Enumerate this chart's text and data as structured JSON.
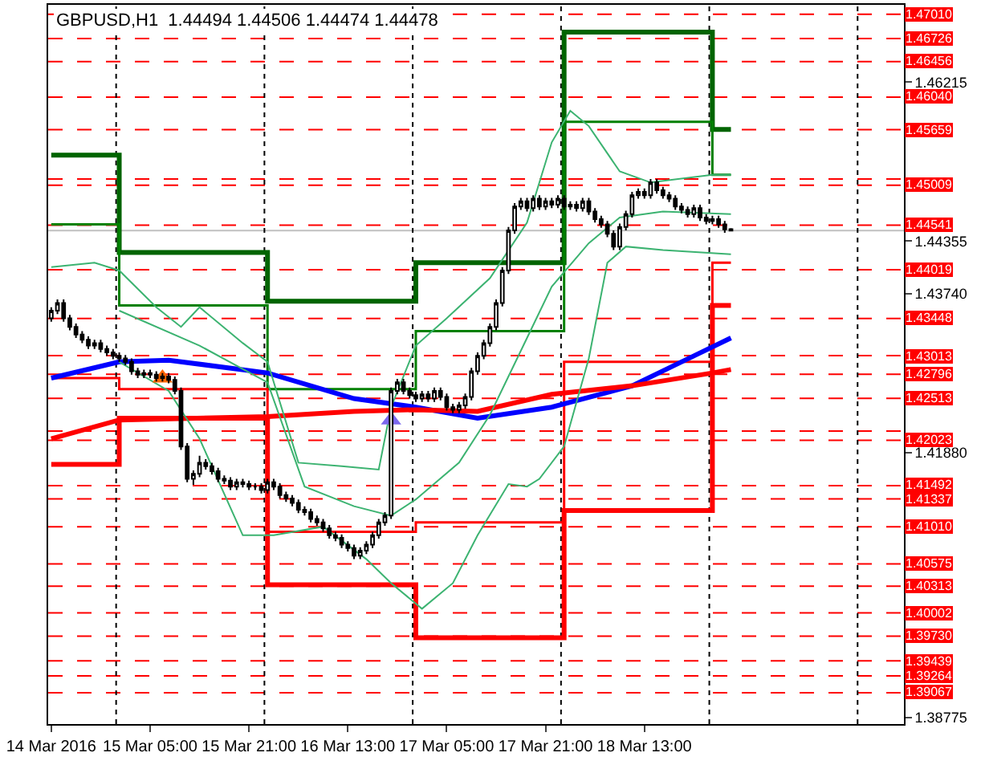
{
  "chart_data": {
    "type": "candlestick",
    "title": "GBPUSD,H1  1.44494 1.44506 1.44474 1.44478",
    "x": [
      "2016-03-14T13:00",
      "2016-03-14T14:00",
      "2016-03-14T15:00",
      "2016-03-14T16:00",
      "2016-03-14T17:00",
      "2016-03-14T18:00",
      "2016-03-14T19:00",
      "2016-03-14T20:00",
      "2016-03-14T21:00",
      "2016-03-14T22:00",
      "2016-03-14T23:00",
      "2016-03-15T00:00",
      "2016-03-15T01:00",
      "2016-03-15T02:00",
      "2016-03-15T03:00",
      "2016-03-15T04:00",
      "2016-03-15T05:00",
      "2016-03-15T06:00",
      "2016-03-15T07:00",
      "2016-03-15T08:00",
      "2016-03-15T09:00",
      "2016-03-15T10:00",
      "2016-03-15T11:00",
      "2016-03-15T12:00",
      "2016-03-15T13:00",
      "2016-03-15T14:00",
      "2016-03-15T15:00",
      "2016-03-15T16:00",
      "2016-03-15T17:00",
      "2016-03-15T18:00",
      "2016-03-15T19:00",
      "2016-03-15T20:00",
      "2016-03-15T21:00",
      "2016-03-15T22:00",
      "2016-03-15T23:00",
      "2016-03-16T00:00",
      "2016-03-16T01:00",
      "2016-03-16T02:00",
      "2016-03-16T03:00",
      "2016-03-16T04:00",
      "2016-03-16T05:00",
      "2016-03-16T06:00",
      "2016-03-16T07:00",
      "2016-03-16T08:00",
      "2016-03-16T09:00",
      "2016-03-16T10:00",
      "2016-03-16T11:00",
      "2016-03-16T12:00",
      "2016-03-16T13:00",
      "2016-03-16T14:00",
      "2016-03-16T15:00",
      "2016-03-16T16:00",
      "2016-03-16T17:00",
      "2016-03-16T18:00",
      "2016-03-16T19:00",
      "2016-03-16T20:00",
      "2016-03-16T21:00",
      "2016-03-16T22:00",
      "2016-03-16T23:00",
      "2016-03-17T00:00",
      "2016-03-17T01:00",
      "2016-03-17T02:00",
      "2016-03-17T03:00",
      "2016-03-17T04:00",
      "2016-03-17T05:00",
      "2016-03-17T06:00",
      "2016-03-17T07:00",
      "2016-03-17T08:00",
      "2016-03-17T09:00",
      "2016-03-17T10:00",
      "2016-03-17T11:00",
      "2016-03-17T12:00",
      "2016-03-17T13:00",
      "2016-03-17T14:00",
      "2016-03-17T15:00",
      "2016-03-17T16:00",
      "2016-03-17T17:00",
      "2016-03-17T18:00",
      "2016-03-17T19:00",
      "2016-03-17T20:00",
      "2016-03-17T21:00",
      "2016-03-17T22:00",
      "2016-03-17T23:00",
      "2016-03-18T00:00",
      "2016-03-18T01:00",
      "2016-03-18T02:00",
      "2016-03-18T03:00",
      "2016-03-18T04:00",
      "2016-03-18T05:00",
      "2016-03-18T06:00",
      "2016-03-18T07:00",
      "2016-03-18T08:00",
      "2016-03-18T09:00",
      "2016-03-18T10:00",
      "2016-03-18T11:00",
      "2016-03-18T12:00",
      "2016-03-18T13:00",
      "2016-03-18T14:00",
      "2016-03-18T15:00",
      "2016-03-18T16:00",
      "2016-03-18T17:00",
      "2016-03-18T18:00",
      "2016-03-18T19:00",
      "2016-03-18T20:00",
      "2016-03-18T21:00",
      "2016-03-18T22:00",
      "2016-03-18T23:00",
      "2016-03-19T00:00",
      "2016-03-19T01:00",
      "2016-03-19T02:00",
      "2016-03-19T03:00"
    ],
    "ohlc": [
      [
        1.4345,
        1.4358,
        1.4341,
        1.4354
      ],
      [
        1.4354,
        1.4367,
        1.435,
        1.4363
      ],
      [
        1.4363,
        1.4367,
        1.4341,
        1.4345
      ],
      [
        1.4345,
        1.4349,
        1.4331,
        1.4335
      ],
      [
        1.4335,
        1.4339,
        1.4322,
        1.4326
      ],
      [
        1.4326,
        1.433,
        1.4316,
        1.432
      ],
      [
        1.432,
        1.4324,
        1.4309,
        1.4313
      ],
      [
        1.4313,
        1.432,
        1.4309,
        1.4316
      ],
      [
        1.4316,
        1.432,
        1.4305,
        1.4309
      ],
      [
        1.4309,
        1.4313,
        1.4301,
        1.4305
      ],
      [
        1.4305,
        1.4309,
        1.4297,
        1.4301
      ],
      [
        1.4301,
        1.4305,
        1.4294,
        1.4298
      ],
      [
        1.4298,
        1.4302,
        1.429,
        1.4294
      ],
      [
        1.4294,
        1.4298,
        1.4279,
        1.4283
      ],
      [
        1.4283,
        1.4287,
        1.4275,
        1.4279
      ],
      [
        1.4279,
        1.4285,
        1.4275,
        1.4281
      ],
      [
        1.4281,
        1.4285,
        1.4275,
        1.4279
      ],
      [
        1.4279,
        1.4283,
        1.4271,
        1.4275
      ],
      [
        1.4275,
        1.4281,
        1.4271,
        1.4277
      ],
      [
        1.4277,
        1.4281,
        1.4269,
        1.4273
      ],
      [
        1.4273,
        1.4277,
        1.4256,
        1.426
      ],
      [
        1.426,
        1.4264,
        1.4191,
        1.4195
      ],
      [
        1.4195,
        1.4199,
        1.4153,
        1.4157
      ],
      [
        1.4157,
        1.4167,
        1.415,
        1.4163
      ],
      [
        1.4163,
        1.4184,
        1.4159,
        1.4176
      ],
      [
        1.4176,
        1.418,
        1.4168,
        1.4172
      ],
      [
        1.4172,
        1.4176,
        1.4162,
        1.4166
      ],
      [
        1.4166,
        1.417,
        1.4153,
        1.4157
      ],
      [
        1.4157,
        1.4161,
        1.4151,
        1.4155
      ],
      [
        1.4155,
        1.4159,
        1.4144,
        1.4148
      ],
      [
        1.4148,
        1.4157,
        1.4144,
        1.4153
      ],
      [
        1.4153,
        1.4157,
        1.4147,
        1.4151
      ],
      [
        1.4151,
        1.4155,
        1.4144,
        1.4148
      ],
      [
        1.4148,
        1.4152,
        1.4144,
        1.4148
      ],
      [
        1.4148,
        1.4152,
        1.414,
        1.4144
      ],
      [
        1.4144,
        1.4157,
        1.414,
        1.4153
      ],
      [
        1.4153,
        1.4157,
        1.4144,
        1.4148
      ],
      [
        1.4148,
        1.4152,
        1.4134,
        1.4138
      ],
      [
        1.4138,
        1.4142,
        1.413,
        1.4134
      ],
      [
        1.4134,
        1.4138,
        1.4125,
        1.4129
      ],
      [
        1.4129,
        1.4133,
        1.4117,
        1.4121
      ],
      [
        1.4121,
        1.4125,
        1.4114,
        1.4118
      ],
      [
        1.4118,
        1.4122,
        1.4106,
        1.411
      ],
      [
        1.411,
        1.4114,
        1.4102,
        1.4106
      ],
      [
        1.4106,
        1.411,
        1.4095,
        1.4099
      ],
      [
        1.4099,
        1.4103,
        1.4087,
        1.4091
      ],
      [
        1.4091,
        1.4095,
        1.4084,
        1.4088
      ],
      [
        1.4088,
        1.4092,
        1.4076,
        1.408
      ],
      [
        1.408,
        1.4084,
        1.4072,
        1.4076
      ],
      [
        1.4076,
        1.408,
        1.4063,
        1.4067
      ],
      [
        1.4067,
        1.4077,
        1.4063,
        1.4073
      ],
      [
        1.4073,
        1.4084,
        1.4069,
        1.408
      ],
      [
        1.408,
        1.4095,
        1.4076,
        1.4091
      ],
      [
        1.4091,
        1.411,
        1.4087,
        1.4106
      ],
      [
        1.4106,
        1.4118,
        1.4102,
        1.4114
      ],
      [
        1.4114,
        1.4264,
        1.411,
        1.426
      ],
      [
        1.426,
        1.4274,
        1.4256,
        1.427
      ],
      [
        1.427,
        1.4274,
        1.4256,
        1.426
      ],
      [
        1.426,
        1.4264,
        1.4251,
        1.4255
      ],
      [
        1.4255,
        1.4259,
        1.4247,
        1.4251
      ],
      [
        1.4251,
        1.426,
        1.4247,
        1.4256
      ],
      [
        1.4256,
        1.426,
        1.4247,
        1.4251
      ],
      [
        1.4251,
        1.4264,
        1.4247,
        1.426
      ],
      [
        1.426,
        1.4264,
        1.4249,
        1.4253
      ],
      [
        1.4253,
        1.4257,
        1.4237,
        1.4241
      ],
      [
        1.4241,
        1.4245,
        1.4234,
        1.4238
      ],
      [
        1.4238,
        1.4247,
        1.4234,
        1.4243
      ],
      [
        1.4243,
        1.4257,
        1.4239,
        1.4253
      ],
      [
        1.4253,
        1.4287,
        1.4249,
        1.4283
      ],
      [
        1.4283,
        1.4305,
        1.4279,
        1.4301
      ],
      [
        1.4301,
        1.432,
        1.4297,
        1.4316
      ],
      [
        1.4316,
        1.4339,
        1.4312,
        1.4335
      ],
      [
        1.4335,
        1.4367,
        1.4331,
        1.4363
      ],
      [
        1.4363,
        1.4405,
        1.4359,
        1.4401
      ],
      [
        1.4401,
        1.4452,
        1.4397,
        1.4448
      ],
      [
        1.4448,
        1.448,
        1.4444,
        1.4476
      ],
      [
        1.4476,
        1.4486,
        1.4472,
        1.4482
      ],
      [
        1.4482,
        1.4486,
        1.447,
        1.4474
      ],
      [
        1.4474,
        1.4489,
        1.447,
        1.4485
      ],
      [
        1.4485,
        1.4489,
        1.4472,
        1.4476
      ],
      [
        1.4476,
        1.4486,
        1.4472,
        1.4482
      ],
      [
        1.4482,
        1.4486,
        1.4474,
        1.4478
      ],
      [
        1.4478,
        1.4489,
        1.4474,
        1.4485
      ],
      [
        1.4485,
        1.4489,
        1.4472,
        1.4476
      ],
      [
        1.4476,
        1.4482,
        1.4472,
        1.4478
      ],
      [
        1.4478,
        1.4482,
        1.447,
        1.4474
      ],
      [
        1.4474,
        1.4486,
        1.447,
        1.4482
      ],
      [
        1.4482,
        1.4486,
        1.4466,
        1.447
      ],
      [
        1.447,
        1.4474,
        1.4457,
        1.4461
      ],
      [
        1.4461,
        1.4465,
        1.4451,
        1.4455
      ],
      [
        1.4455,
        1.4459,
        1.444,
        1.4444
      ],
      [
        1.4444,
        1.4448,
        1.4425,
        1.4429
      ],
      [
        1.4429,
        1.4456,
        1.4425,
        1.4452
      ],
      [
        1.4452,
        1.4471,
        1.4448,
        1.4467
      ],
      [
        1.4467,
        1.4493,
        1.4463,
        1.4489
      ],
      [
        1.4489,
        1.4497,
        1.4485,
        1.4493
      ],
      [
        1.4493,
        1.4497,
        1.4485,
        1.4489
      ],
      [
        1.4489,
        1.4508,
        1.4485,
        1.4504
      ],
      [
        1.4504,
        1.4508,
        1.4491,
        1.4495
      ],
      [
        1.4495,
        1.4499,
        1.4485,
        1.4489
      ],
      [
        1.4489,
        1.4493,
        1.4481,
        1.4485
      ],
      [
        1.4485,
        1.4489,
        1.4472,
        1.4476
      ],
      [
        1.4476,
        1.448,
        1.4468,
        1.4472
      ],
      [
        1.4472,
        1.4476,
        1.4463,
        1.4467
      ],
      [
        1.4467,
        1.4478,
        1.4463,
        1.4474
      ],
      [
        1.4474,
        1.4478,
        1.4459,
        1.4463
      ],
      [
        1.4463,
        1.4467,
        1.4455,
        1.4459
      ],
      [
        1.4459,
        1.4465,
        1.4455,
        1.4461
      ],
      [
        1.4461,
        1.4465,
        1.4451,
        1.4455
      ],
      [
        1.4455,
        1.4459,
        1.4445,
        1.4449
      ],
      [
        1.44494,
        1.44506,
        1.44474,
        1.44478
      ]
    ],
    "series": [
      {
        "type": "step",
        "color": "#006400",
        "x": [
          "2016-03-14T13:00",
          "2016-03-15T00:00",
          "2016-03-16T00:00",
          "2016-03-17T00:00",
          "2016-03-18T00:00",
          "2016-03-19T00:00",
          "2016-03-19T03:00"
        ],
        "values": [
          1.4536,
          1.4422,
          1.4365,
          1.441,
          1.468,
          1.4566,
          1.4566
        ]
      },
      {
        "type": "step",
        "color": "#008000",
        "x": [
          "2016-03-14T13:00",
          "2016-03-15T00:00",
          "2016-03-16T00:00",
          "2016-03-17T00:00",
          "2016-03-18T00:00",
          "2016-03-19T00:00",
          "2016-03-19T03:00"
        ],
        "values": [
          1.4455,
          1.436,
          1.4262,
          1.433,
          1.4575,
          1.4513,
          1.4513
        ]
      },
      {
        "type": "step",
        "color": "#ff0000",
        "x": [
          "2016-03-14T13:00",
          "2016-03-15T00:00",
          "2016-03-16T00:00",
          "2016-03-17T00:00",
          "2016-03-18T00:00",
          "2016-03-19T00:00",
          "2016-03-19T03:00"
        ],
        "values": [
          1.4174,
          1.4228,
          1.4033,
          1.3971,
          1.412,
          1.436,
          1.436
        ]
      },
      {
        "type": "step",
        "color": "#ff0000",
        "x": [
          "2016-03-14T13:00",
          "2016-03-15T00:00",
          "2016-03-16T00:00",
          "2016-03-17T00:00",
          "2016-03-18T00:00",
          "2016-03-19T00:00",
          "2016-03-19T03:00"
        ],
        "values": [
          1.4275,
          1.4262,
          1.4095,
          1.4106,
          1.4294,
          1.441,
          1.441
        ]
      },
      {
        "type": "line",
        "color": "#0000ff",
        "x": [
          "2016-03-14T13:00",
          "2016-03-15T00:00",
          "2016-03-15T08:00",
          "2016-03-16T00:00",
          "2016-03-16T14:00",
          "2016-03-17T00:00",
          "2016-03-17T10:00",
          "2016-03-17T22:00",
          "2016-03-18T11:00",
          "2016-03-18T21:00",
          "2016-03-19T03:00"
        ],
        "values": [
          1.4275,
          1.4294,
          1.4296,
          1.4281,
          1.4251,
          1.4241,
          1.4228,
          1.4241,
          1.4266,
          1.4301,
          1.4322
        ]
      },
      {
        "type": "line",
        "color": "#ff0000",
        "x": [
          "2016-03-14T13:00",
          "2016-03-15T00:00",
          "2016-03-16T00:00",
          "2016-03-16T14:00",
          "2016-03-17T00:00",
          "2016-03-17T10:00",
          "2016-03-17T22:00",
          "2016-03-18T11:00",
          "2016-03-19T00:00",
          "2016-03-19T03:00"
        ],
        "values": [
          1.4204,
          1.4226,
          1.423,
          1.4236,
          1.4238,
          1.4236,
          1.4256,
          1.4266,
          1.4281,
          1.4285
        ]
      },
      {
        "type": "line",
        "color": "#3cb371",
        "x": [
          "2016-03-14T13:00",
          "2016-03-14T20:00",
          "2016-03-15T00:00",
          "2016-03-15T06:00",
          "2016-03-15T10:00",
          "2016-03-15T13:00",
          "2016-03-15T20:00",
          "2016-03-16T00:00",
          "2016-03-16T05:00",
          "2016-03-16T12:00",
          "2016-03-16T18:00",
          "2016-03-16T20:00",
          "2016-03-17T00:00",
          "2016-03-17T05:00",
          "2016-03-17T12:00",
          "2016-03-17T18:00",
          "2016-03-17T22:00",
          "2016-03-18T01:00",
          "2016-03-18T04:00",
          "2016-03-18T09:00",
          "2016-03-18T14:00",
          "2016-03-19T00:00",
          "2016-03-19T03:00"
        ],
        "values": [
          1.4405,
          1.441,
          1.4401,
          1.4358,
          1.4335,
          1.4358,
          1.4316,
          1.4294,
          1.4176,
          1.4172,
          1.4168,
          1.4241,
          1.4313,
          1.4345,
          1.4392,
          1.4457,
          1.4551,
          1.4588,
          1.457,
          1.4517,
          1.4504,
          1.4513,
          1.4513
        ]
      },
      {
        "type": "line",
        "color": "#3cb371",
        "x": [
          "2016-03-15T00:00",
          "2016-03-15T13:00",
          "2016-03-16T00:00",
          "2016-03-16T06:00",
          "2016-03-16T14:00",
          "2016-03-16T20:00",
          "2016-03-17T00:00",
          "2016-03-17T07:00",
          "2016-03-17T12:00",
          "2016-03-17T18:00",
          "2016-03-17T22:00",
          "2016-03-18T04:00",
          "2016-03-18T09:00",
          "2016-03-18T16:00",
          "2016-03-19T03:00"
        ],
        "values": [
          1.4354,
          1.4313,
          1.427,
          1.4148,
          1.4125,
          1.4114,
          1.4133,
          1.4176,
          1.4232,
          1.4322,
          1.4382,
          1.4433,
          1.4463,
          1.447,
          1.4467
        ]
      },
      {
        "type": "line",
        "color": "#3cb371",
        "x": [
          "2016-03-15T00:00",
          "2016-03-15T08:00",
          "2016-03-15T13:00",
          "2016-03-15T20:00",
          "2016-03-16T01:00",
          "2016-03-16T09:00",
          "2016-03-16T16:00",
          "2016-03-16T20:00",
          "2016-03-17T01:00",
          "2016-03-17T06:00",
          "2016-03-17T10:00",
          "2016-03-17T15:00",
          "2016-03-17T18:00",
          "2016-03-17T20:00",
          "2016-03-18T00:00",
          "2016-03-18T04:00",
          "2016-03-18T07:00",
          "2016-03-18T10:00",
          "2016-03-18T16:00",
          "2016-03-19T03:00"
        ],
        "values": [
          1.4294,
          1.426,
          1.4204,
          1.4091,
          1.4091,
          1.4101,
          1.4063,
          1.4035,
          1.4005,
          1.4035,
          1.4091,
          1.4151,
          1.4148,
          1.4157,
          1.4195,
          1.4298,
          1.441,
          1.4429,
          1.4425,
          1.442
        ]
      },
      {
        "type": "scatter",
        "color": "#ff6600",
        "marker": "triangle",
        "x": [
          "2016-03-15T07:00"
        ],
        "values": [
          1.4275
        ]
      },
      {
        "type": "scatter",
        "color": "#7b68ee",
        "marker": "triangle",
        "x": [
          "2016-03-16T20:00"
        ],
        "values": [
          1.4226
        ]
      }
    ],
    "xlim": [
      "2016-03-14T12:30",
      "2016-03-20T07:00"
    ],
    "xticks": [
      {
        "value": "2016-03-14T13:00",
        "label": "14 Mar 2016"
      },
      {
        "value": "2016-03-15T05:00",
        "label": "15 Mar 05:00"
      },
      {
        "value": "2016-03-15T21:00",
        "label": "15 Mar 21:00"
      },
      {
        "value": "2016-03-16T13:00",
        "label": "16 Mar 13:00"
      },
      {
        "value": "2016-03-17T05:00",
        "label": "17 Mar 05:00"
      },
      {
        "value": "2016-03-17T21:00",
        "label": "17 Mar 21:00"
      },
      {
        "value": "2016-03-18T13:00",
        "label": "18 Mar 13:00"
      }
    ],
    "ylim": [
      1.387,
      1.4712
    ],
    "yticks": [
      {
        "value": 1.38775,
        "label": "1.38775"
      },
      {
        "value": 1.4188,
        "label": "1.41880"
      },
      {
        "value": 1.4374,
        "label": "1.43740"
      },
      {
        "value": 1.44355,
        "label": "1.44355"
      },
      {
        "value": 1.46215,
        "label": "1.46215"
      }
    ],
    "ref_lines": [
      {
        "axis": "y",
        "value": 1.4701,
        "label": "1.47010",
        "color": "#ff0000",
        "line_style": "dashed"
      },
      {
        "axis": "y",
        "value": 1.46726,
        "label": "1.46726",
        "color": "#ff0000",
        "line_style": "dashed"
      },
      {
        "axis": "y",
        "value": 1.46456,
        "label": "1.46456",
        "color": "#ff0000",
        "line_style": "dashed"
      },
      {
        "axis": "y",
        "value": 1.4604,
        "label": "1.46040",
        "color": "#ff0000",
        "line_style": "dashed"
      },
      {
        "axis": "y",
        "value": 1.45659,
        "label": "1.45659",
        "color": "#ff0000",
        "line_style": "dashed"
      },
      {
        "axis": "y",
        "value": 1.4508,
        "label": null,
        "color": "#ff0000",
        "line_style": "dashed"
      },
      {
        "axis": "y",
        "value": 1.45009,
        "label": "1.45009",
        "color": "#ff0000",
        "line_style": "dashed"
      },
      {
        "axis": "y",
        "value": 1.44541,
        "label": "1.44541",
        "color": "#ff0000",
        "line_style": "dashed"
      },
      {
        "axis": "y",
        "value": 1.44478,
        "label": null,
        "color": "#c0c0c0",
        "line_style": "solid"
      },
      {
        "axis": "y",
        "value": 1.44019,
        "label": "1.44019",
        "color": "#ff0000",
        "line_style": "dashed"
      },
      {
        "axis": "y",
        "value": 1.43448,
        "label": "1.43448",
        "color": "#ff0000",
        "line_style": "dashed"
      },
      {
        "axis": "y",
        "value": 1.43013,
        "label": "1.43013",
        "color": "#ff0000",
        "line_style": "dashed"
      },
      {
        "axis": "y",
        "value": 1.42796,
        "label": "1.42796",
        "color": "#ff0000",
        "line_style": "dashed"
      },
      {
        "axis": "y",
        "value": 1.42513,
        "label": "1.42513",
        "color": "#ff0000",
        "line_style": "dashed"
      },
      {
        "axis": "y",
        "value": 1.4213,
        "label": null,
        "color": "#ff0000",
        "line_style": "dashed"
      },
      {
        "axis": "y",
        "value": 1.42023,
        "label": "1.42023",
        "color": "#ff0000",
        "line_style": "dashed"
      },
      {
        "axis": "y",
        "value": 1.41492,
        "label": "1.41492",
        "color": "#ff0000",
        "line_style": "dashed"
      },
      {
        "axis": "y",
        "value": 1.41337,
        "label": "1.41337",
        "color": "#ff0000",
        "line_style": "dashed"
      },
      {
        "axis": "y",
        "value": 1.4101,
        "label": "1.41010",
        "color": "#ff0000",
        "line_style": "dashed"
      },
      {
        "axis": "y",
        "value": 1.40575,
        "label": "1.40575",
        "color": "#ff0000",
        "line_style": "dashed"
      },
      {
        "axis": "y",
        "value": 1.40313,
        "label": "1.40313",
        "color": "#ff0000",
        "line_style": "dashed"
      },
      {
        "axis": "y",
        "value": 1.40002,
        "label": "1.40002",
        "color": "#ff0000",
        "line_style": "dashed"
      },
      {
        "axis": "y",
        "value": 1.3973,
        "label": "1.39730",
        "color": "#ff0000",
        "line_style": "dashed"
      },
      {
        "axis": "y",
        "value": 1.39439,
        "label": "1.39439",
        "color": "#ff0000",
        "line_style": "dashed"
      },
      {
        "axis": "y",
        "value": 1.39264,
        "label": "1.39264",
        "color": "#ff0000",
        "line_style": "dashed"
      },
      {
        "axis": "y",
        "value": 1.39067,
        "label": "1.39067",
        "color": "#ff0000",
        "line_style": "dashed"
      },
      {
        "axis": "x",
        "value": "2016-03-14T23:30",
        "color": "#000000",
        "line_style": "dotted"
      },
      {
        "axis": "x",
        "value": "2016-03-15T23:30",
        "color": "#000000",
        "line_style": "dotted"
      },
      {
        "axis": "x",
        "value": "2016-03-16T23:30",
        "color": "#000000",
        "line_style": "dotted"
      },
      {
        "axis": "x",
        "value": "2016-03-17T23:30",
        "color": "#000000",
        "line_style": "dotted"
      },
      {
        "axis": "x",
        "value": "2016-03-18T23:30",
        "color": "#000000",
        "line_style": "dotted"
      },
      {
        "axis": "x",
        "value": "2016-03-19T23:30",
        "color": "#000000",
        "line_style": "dotted"
      }
    ]
  }
}
